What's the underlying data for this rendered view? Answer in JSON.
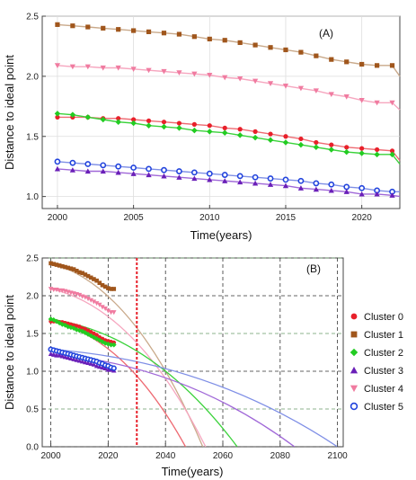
{
  "chart_data": [
    {
      "type": "scatter",
      "panel_label": "(A)",
      "xlabel": "Time(years)",
      "ylabel": "Distance to ideal point",
      "xlim": [
        1999,
        2022.5
      ],
      "ylim": [
        0.9,
        2.5
      ],
      "xticks": [
        2000,
        2005,
        2010,
        2015,
        2020
      ],
      "yticks": [
        1.0,
        1.5,
        2.0,
        2.5
      ],
      "tick_labels_x": [
        "2000",
        "2005",
        "2010",
        "2015",
        "2020"
      ],
      "tick_labels_y": [
        "1.0",
        "1.5",
        "2.0",
        "2.5"
      ],
      "grid": true,
      "series": [
        {
          "name": "Cluster 1",
          "marker": "square",
          "color": "#a0561c",
          "fit_color": "#c9a98a",
          "x": [
            2000,
            2001,
            2002,
            2003,
            2004,
            2005,
            2006,
            2007,
            2008,
            2009,
            2010,
            2011,
            2012,
            2013,
            2014,
            2015,
            2016,
            2017,
            2018,
            2019,
            2020,
            2021,
            2022
          ],
          "y": [
            2.43,
            2.42,
            2.41,
            2.4,
            2.39,
            2.38,
            2.37,
            2.36,
            2.35,
            2.33,
            2.31,
            2.3,
            2.28,
            2.26,
            2.24,
            2.22,
            2.2,
            2.17,
            2.14,
            2.12,
            2.1,
            2.09,
            2.09
          ],
          "fit_end": [
            2022.5,
            2.0
          ]
        },
        {
          "name": "Cluster 4",
          "marker": "triangle-down",
          "color": "#f07ba0",
          "fit_color": "#f6a6bf",
          "x": [
            2000,
            2001,
            2002,
            2003,
            2004,
            2005,
            2006,
            2007,
            2008,
            2009,
            2010,
            2011,
            2012,
            2013,
            2014,
            2015,
            2016,
            2017,
            2018,
            2019,
            2020,
            2021,
            2022
          ],
          "y": [
            2.09,
            2.08,
            2.08,
            2.07,
            2.07,
            2.06,
            2.05,
            2.04,
            2.03,
            2.02,
            2.01,
            1.99,
            1.98,
            1.96,
            1.94,
            1.92,
            1.9,
            1.88,
            1.85,
            1.83,
            1.8,
            1.78,
            1.78
          ],
          "fit_end": [
            2022.5,
            1.72
          ]
        },
        {
          "name": "Cluster 0",
          "marker": "circle",
          "color": "#e8202a",
          "fit_color": "#ee6a72",
          "x": [
            2000,
            2001,
            2002,
            2003,
            2004,
            2005,
            2006,
            2007,
            2008,
            2009,
            2010,
            2011,
            2012,
            2013,
            2014,
            2015,
            2016,
            2017,
            2018,
            2019,
            2020,
            2021,
            2022
          ],
          "y": [
            1.66,
            1.66,
            1.66,
            1.65,
            1.65,
            1.64,
            1.63,
            1.62,
            1.61,
            1.6,
            1.59,
            1.57,
            1.56,
            1.54,
            1.52,
            1.5,
            1.48,
            1.45,
            1.43,
            1.41,
            1.4,
            1.39,
            1.38
          ],
          "fit_end": [
            2022.5,
            1.3
          ]
        },
        {
          "name": "Cluster 2",
          "marker": "diamond",
          "color": "#22cc22",
          "fit_color": "#3ad23a",
          "x": [
            2000,
            2001,
            2002,
            2003,
            2004,
            2005,
            2006,
            2007,
            2008,
            2009,
            2010,
            2011,
            2012,
            2013,
            2014,
            2015,
            2016,
            2017,
            2018,
            2019,
            2020,
            2021,
            2022
          ],
          "y": [
            1.69,
            1.68,
            1.66,
            1.64,
            1.62,
            1.61,
            1.59,
            1.58,
            1.57,
            1.55,
            1.54,
            1.53,
            1.51,
            1.49,
            1.47,
            1.45,
            1.43,
            1.41,
            1.39,
            1.37,
            1.36,
            1.35,
            1.35
          ],
          "fit_end": [
            2022.5,
            1.27
          ]
        },
        {
          "name": "Cluster 5",
          "marker": "circle-open",
          "color": "#2244dd",
          "fit_color": "#7f8fe6",
          "x": [
            2000,
            2001,
            2002,
            2003,
            2004,
            2005,
            2006,
            2007,
            2008,
            2009,
            2010,
            2011,
            2012,
            2013,
            2014,
            2015,
            2016,
            2017,
            2018,
            2019,
            2020,
            2021,
            2022
          ],
          "y": [
            1.29,
            1.28,
            1.27,
            1.26,
            1.25,
            1.24,
            1.23,
            1.22,
            1.21,
            1.2,
            1.19,
            1.18,
            1.17,
            1.16,
            1.15,
            1.14,
            1.13,
            1.11,
            1.1,
            1.08,
            1.07,
            1.05,
            1.04
          ],
          "fit_end": [
            2022.5,
            1.04
          ]
        },
        {
          "name": "Cluster 3",
          "marker": "triangle-up",
          "color": "#6a1fb8",
          "fit_color": "#a068d8",
          "x": [
            2000,
            2001,
            2002,
            2003,
            2004,
            2005,
            2006,
            2007,
            2008,
            2009,
            2010,
            2011,
            2012,
            2013,
            2014,
            2015,
            2016,
            2017,
            2018,
            2019,
            2020,
            2021,
            2022
          ],
          "y": [
            1.23,
            1.22,
            1.21,
            1.21,
            1.2,
            1.19,
            1.18,
            1.17,
            1.16,
            1.15,
            1.14,
            1.13,
            1.12,
            1.11,
            1.1,
            1.09,
            1.07,
            1.06,
            1.05,
            1.04,
            1.02,
            1.02,
            1.01
          ],
          "fit_end": [
            2022.5,
            1.0
          ]
        }
      ]
    },
    {
      "type": "scatter",
      "panel_label": "(B)",
      "xlabel": "Time(years)",
      "ylabel": "Distance to ideal point",
      "xlim": [
        1997,
        2102
      ],
      "ylim": [
        0.0,
        2.5
      ],
      "xticks": [
        2000,
        2020,
        2040,
        2060,
        2080,
        2100
      ],
      "yticks": [
        0.0,
        0.5,
        1.0,
        1.5,
        2.0,
        2.5
      ],
      "tick_labels_x": [
        "2000",
        "2020",
        "2040",
        "2060",
        "2080",
        "2100"
      ],
      "tick_labels_y": [
        "0.0",
        "0.5",
        "1.0",
        "1.5",
        "2.0",
        "2.5"
      ],
      "grid": true,
      "marker_line_x": 2030,
      "legend_position": "right",
      "legend": [
        "Cluster 0",
        "Cluster 1",
        "Cluster 2",
        "Cluster 3",
        "Cluster 4",
        "Cluster 5"
      ],
      "projections": [
        {
          "name": "Cluster 1",
          "to": [
            2053,
            0.0
          ]
        },
        {
          "name": "Cluster 4",
          "to": [
            2054,
            0.0
          ]
        },
        {
          "name": "Cluster 0",
          "to": [
            2047,
            0.0
          ]
        },
        {
          "name": "Cluster 2",
          "to": [
            2065,
            0.0
          ]
        },
        {
          "name": "Cluster 3",
          "to": [
            2085,
            0.0
          ]
        },
        {
          "name": "Cluster 5",
          "to": [
            2100,
            0.0
          ]
        }
      ]
    }
  ]
}
